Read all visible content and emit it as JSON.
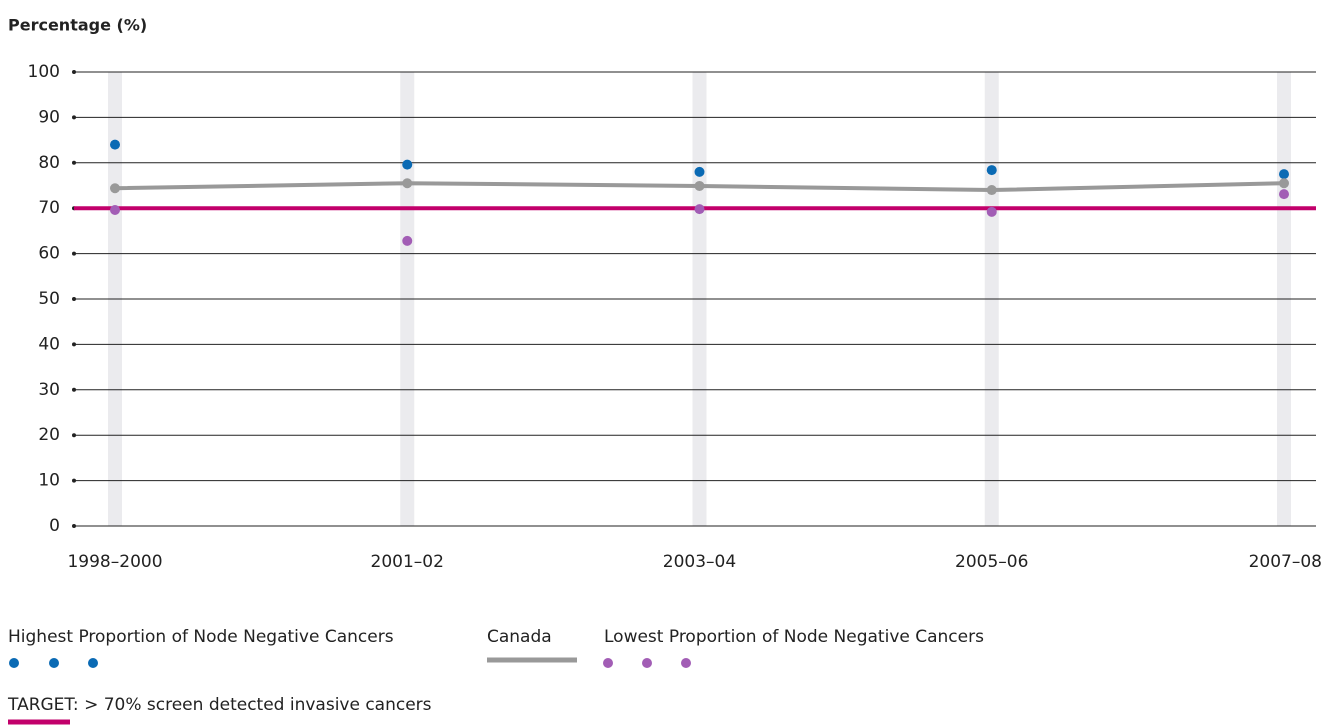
{
  "chart_data": {
    "type": "line",
    "y_label": "Percentage (%)",
    "categories": [
      "1998–2000",
      "2001–02",
      "2003–04",
      "2005–06",
      "2007–08"
    ],
    "ylim": [
      0,
      100
    ],
    "yticks": [
      0,
      10,
      20,
      30,
      40,
      50,
      60,
      70,
      80,
      90,
      100
    ],
    "grid": true,
    "series": [
      {
        "name": "Highest Proportion of Node Negative Cancers",
        "color": "#0a6ab4",
        "mode": "markers",
        "values": [
          84,
          79.6,
          78,
          78.4,
          77.5
        ]
      },
      {
        "name": "Canada",
        "color": "#999999",
        "mode": "line",
        "values": [
          74.4,
          75.5,
          74.9,
          74,
          75.5
        ]
      },
      {
        "name": "Lowest Proportion of Node Negative Cancers",
        "color": "#a25db5",
        "mode": "markers",
        "values": [
          69.6,
          62.8,
          69.8,
          69.2,
          73.1
        ]
      }
    ],
    "target": {
      "label": "TARGET: > 70% screen detected invasive cancers",
      "value": 70,
      "color": "#c2006b"
    }
  }
}
